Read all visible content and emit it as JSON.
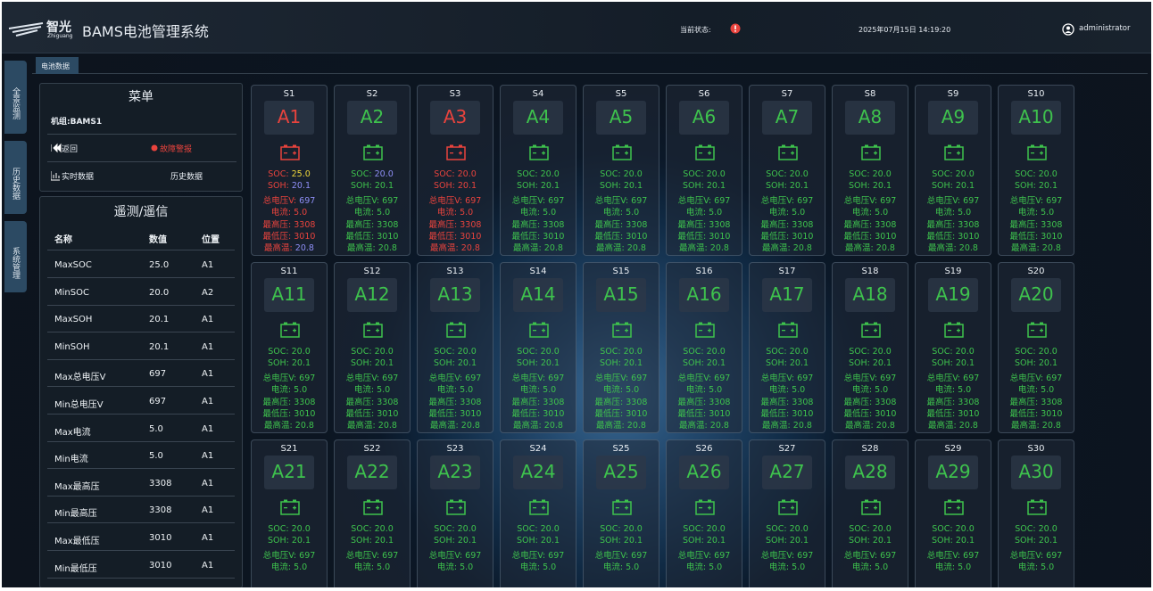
{
  "header": {
    "logo": "智光",
    "logo_sub": "Zhiguang",
    "title": "BAMS电池管理系统",
    "status_label": "当前状态:",
    "datetime": "2025年07月15日 14:19:20",
    "user": "administrator"
  },
  "side_nav": [
    "全景监测",
    "历史数据",
    "系统管理"
  ],
  "tab": "电池数据",
  "menu": {
    "title": "菜单",
    "group": "机组:BAMS1",
    "items": [
      "返回",
      "故障警报",
      "实时数据",
      "历史数据"
    ]
  },
  "telemetry": {
    "title": "遥测/遥信",
    "headers": [
      "名称",
      "数值",
      "位置"
    ],
    "rows": [
      [
        "MaxSOC",
        "25.0",
        "A1"
      ],
      [
        "MinSOC",
        "20.0",
        "A2"
      ],
      [
        "MaxSOH",
        "20.1",
        "A1"
      ],
      [
        "MinSOH",
        "20.1",
        "A1"
      ],
      [
        "Max总电压V",
        "697",
        "A1"
      ],
      [
        "Min总电压V",
        "697",
        "A1"
      ],
      [
        "Max电流",
        "5.0",
        "A1"
      ],
      [
        "Min电流",
        "5.0",
        "A1"
      ],
      [
        "Max最高压",
        "3308",
        "A1"
      ],
      [
        "Min最高压",
        "3308",
        "A1"
      ],
      [
        "Max最低压",
        "3010",
        "A1"
      ],
      [
        "Min最低压",
        "3010",
        "A1"
      ]
    ]
  },
  "metric_labels": [
    "SOC:",
    "SOH:",
    "总电压V:",
    "电流:",
    "最高压:",
    "最低压:",
    "最高温:"
  ],
  "colors": {
    "normal": "#3ec24d",
    "alarm": "#e8433d"
  },
  "cards": [
    {
      "slot": "S1",
      "name": "A1",
      "status": "alarm",
      "metrics": [
        "25.0",
        "20.1",
        "697",
        "5.0",
        "3308",
        "3010",
        "20.8"
      ],
      "value_colors": [
        "#f1d83a",
        "#8e8ef5",
        "#8e8ef5",
        null,
        null,
        null,
        "#8e8ef5"
      ]
    },
    {
      "slot": "S2",
      "name": "A2",
      "status": "normal",
      "metrics": [
        "20.0",
        "20.1",
        "697",
        "5.0",
        "3308",
        "3010",
        "20.8"
      ],
      "value_colors": [
        "#8e8ef5",
        null,
        null,
        null,
        null,
        null,
        null
      ]
    },
    {
      "slot": "S3",
      "name": "A3",
      "status": "alarm",
      "metrics": [
        "20.0",
        "20.1",
        "697",
        "5.0",
        "3308",
        "3010",
        "20.8"
      ]
    },
    {
      "slot": "S4",
      "name": "A4",
      "status": "normal",
      "metrics": [
        "20.0",
        "20.1",
        "697",
        "5.0",
        "3308",
        "3010",
        "20.8"
      ]
    },
    {
      "slot": "S5",
      "name": "A5",
      "status": "normal",
      "metrics": [
        "20.0",
        "20.1",
        "697",
        "5.0",
        "3308",
        "3010",
        "20.8"
      ]
    },
    {
      "slot": "S6",
      "name": "A6",
      "status": "normal",
      "metrics": [
        "20.0",
        "20.1",
        "697",
        "5.0",
        "3308",
        "3010",
        "20.8"
      ]
    },
    {
      "slot": "S7",
      "name": "A7",
      "status": "normal",
      "metrics": [
        "20.0",
        "20.1",
        "697",
        "5.0",
        "3308",
        "3010",
        "20.8"
      ]
    },
    {
      "slot": "S8",
      "name": "A8",
      "status": "normal",
      "metrics": [
        "20.0",
        "20.1",
        "697",
        "5.0",
        "3308",
        "3010",
        "20.8"
      ]
    },
    {
      "slot": "S9",
      "name": "A9",
      "status": "normal",
      "metrics": [
        "20.0",
        "20.1",
        "697",
        "5.0",
        "3308",
        "3010",
        "20.8"
      ]
    },
    {
      "slot": "S10",
      "name": "A10",
      "status": "normal",
      "metrics": [
        "20.0",
        "20.1",
        "697",
        "5.0",
        "3308",
        "3010",
        "20.8"
      ]
    },
    {
      "slot": "S11",
      "name": "A11",
      "status": "normal",
      "metrics": [
        "20.0",
        "20.1",
        "697",
        "5.0",
        "3308",
        "3010",
        "20.8"
      ]
    },
    {
      "slot": "S12",
      "name": "A12",
      "status": "normal",
      "metrics": [
        "20.0",
        "20.1",
        "697",
        "5.0",
        "3308",
        "3010",
        "20.8"
      ]
    },
    {
      "slot": "S13",
      "name": "A13",
      "status": "normal",
      "metrics": [
        "20.0",
        "20.1",
        "697",
        "5.0",
        "3308",
        "3010",
        "20.8"
      ]
    },
    {
      "slot": "S14",
      "name": "A14",
      "status": "normal",
      "metrics": [
        "20.0",
        "20.1",
        "697",
        "5.0",
        "3308",
        "3010",
        "20.8"
      ]
    },
    {
      "slot": "S15",
      "name": "A15",
      "status": "normal",
      "metrics": [
        "20.0",
        "20.1",
        "697",
        "5.0",
        "3308",
        "3010",
        "20.8"
      ]
    },
    {
      "slot": "S16",
      "name": "A16",
      "status": "normal",
      "metrics": [
        "20.0",
        "20.1",
        "697",
        "5.0",
        "3308",
        "3010",
        "20.8"
      ]
    },
    {
      "slot": "S17",
      "name": "A17",
      "status": "normal",
      "metrics": [
        "20.0",
        "20.1",
        "697",
        "5.0",
        "3308",
        "3010",
        "20.8"
      ]
    },
    {
      "slot": "S18",
      "name": "A18",
      "status": "normal",
      "metrics": [
        "20.0",
        "20.1",
        "697",
        "5.0",
        "3308",
        "3010",
        "20.8"
      ]
    },
    {
      "slot": "S19",
      "name": "A19",
      "status": "normal",
      "metrics": [
        "20.0",
        "20.1",
        "697",
        "5.0",
        "3308",
        "3010",
        "20.8"
      ]
    },
    {
      "slot": "S20",
      "name": "A20",
      "status": "normal",
      "metrics": [
        "20.0",
        "20.1",
        "697",
        "5.0",
        "3308",
        "3010",
        "20.8"
      ]
    },
    {
      "slot": "S21",
      "name": "A21",
      "status": "normal",
      "metrics": [
        "20.0",
        "20.1",
        "697",
        "5.0"
      ]
    },
    {
      "slot": "S22",
      "name": "A22",
      "status": "normal",
      "metrics": [
        "20.0",
        "20.1",
        "697",
        "5.0"
      ]
    },
    {
      "slot": "S23",
      "name": "A23",
      "status": "normal",
      "metrics": [
        "20.0",
        "20.1",
        "697",
        "5.0"
      ]
    },
    {
      "slot": "S24",
      "name": "A24",
      "status": "normal",
      "metrics": [
        "20.0",
        "20.1",
        "697",
        "5.0"
      ]
    },
    {
      "slot": "S25",
      "name": "A25",
      "status": "normal",
      "metrics": [
        "20.0",
        "20.1",
        "697",
        "5.0"
      ]
    },
    {
      "slot": "S26",
      "name": "A26",
      "status": "normal",
      "metrics": [
        "20.0",
        "20.1",
        "697",
        "5.0"
      ]
    },
    {
      "slot": "S27",
      "name": "A27",
      "status": "normal",
      "metrics": [
        "20.0",
        "20.1",
        "697",
        "5.0"
      ]
    },
    {
      "slot": "S28",
      "name": "A28",
      "status": "normal",
      "metrics": [
        "20.0",
        "20.1",
        "697",
        "5.0"
      ]
    },
    {
      "slot": "S29",
      "name": "A29",
      "status": "normal",
      "metrics": [
        "20.0",
        "20.1",
        "697",
        "5.0"
      ]
    },
    {
      "slot": "S30",
      "name": "A30",
      "status": "normal",
      "metrics": [
        "20.0",
        "20.1",
        "697",
        "5.0"
      ]
    }
  ]
}
